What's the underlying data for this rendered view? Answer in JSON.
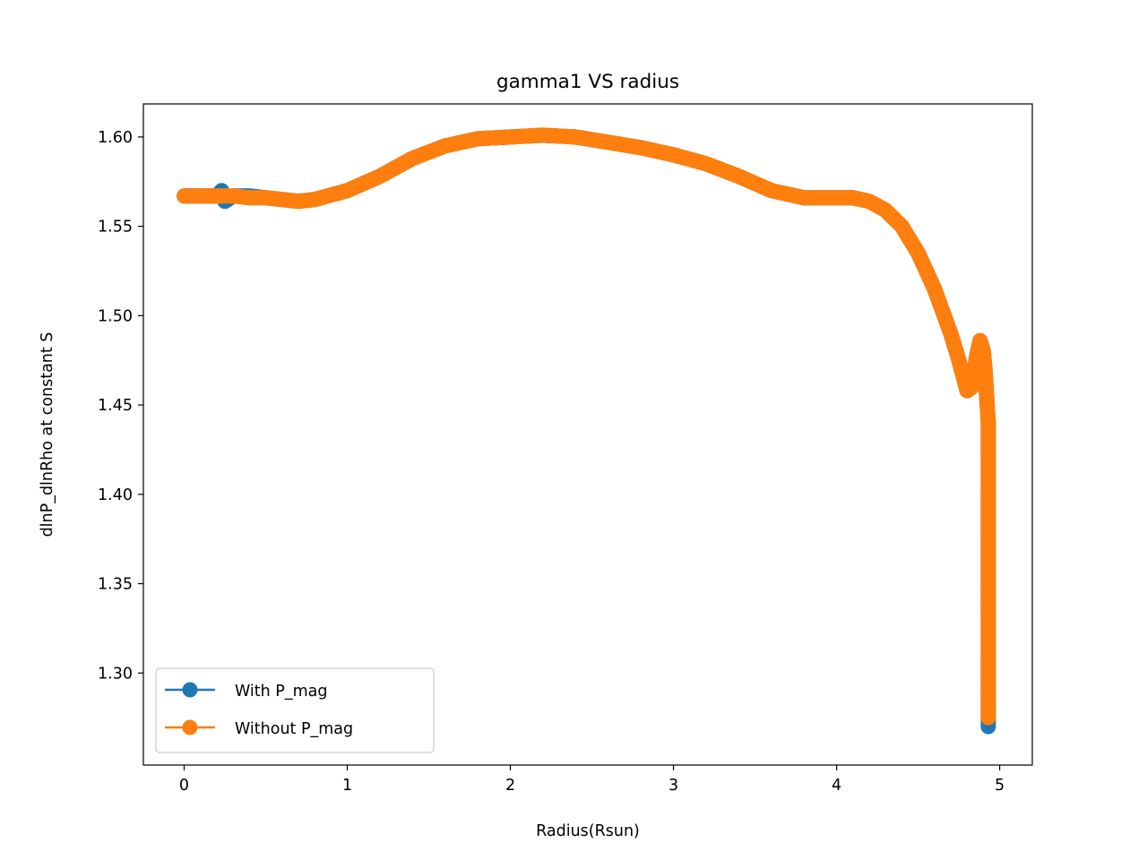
{
  "chart_data": {
    "type": "line",
    "title": "gamma1 VS radius",
    "xlabel": "Radius(Rsun)",
    "ylabel": "dlnP_dlnRho at constant S",
    "xlim": [
      -0.25,
      5.2
    ],
    "ylim": [
      1.2485,
      1.6185
    ],
    "xticks": [
      0,
      1,
      2,
      3,
      4,
      5
    ],
    "xtick_labels": [
      "0",
      "1",
      "2",
      "3",
      "4",
      "5"
    ],
    "yticks": [
      1.3,
      1.35,
      1.4,
      1.45,
      1.5,
      1.55,
      1.6
    ],
    "ytick_labels": [
      "1.30",
      "1.35",
      "1.40",
      "1.45",
      "1.50",
      "1.55",
      "1.60"
    ],
    "grid": false,
    "legend_position": "lower-left",
    "series": [
      {
        "name": "With P_mag",
        "color": "#1f77b4",
        "marker": "circle",
        "x": [
          0.0,
          0.1,
          0.2,
          0.23,
          0.25,
          0.3,
          0.4,
          0.5,
          0.6,
          0.7,
          0.8,
          1.0,
          1.2,
          1.4,
          1.6,
          1.8,
          2.0,
          2.2,
          2.4,
          2.6,
          2.8,
          3.0,
          3.2,
          3.4,
          3.6,
          3.8,
          4.0,
          4.1,
          4.2,
          4.3,
          4.4,
          4.5,
          4.6,
          4.7,
          4.75,
          4.8,
          4.83,
          4.86,
          4.88,
          4.9,
          4.91,
          4.92,
          4.93,
          4.93,
          4.93,
          4.93,
          4.93,
          4.93,
          4.93,
          4.93,
          4.93,
          4.93
        ],
        "y": [
          1.567,
          1.567,
          1.567,
          1.57,
          1.564,
          1.567,
          1.567,
          1.566,
          1.565,
          1.564,
          1.565,
          1.57,
          1.578,
          1.588,
          1.595,
          1.599,
          1.6,
          1.601,
          1.6,
          1.597,
          1.594,
          1.59,
          1.585,
          1.578,
          1.57,
          1.566,
          1.566,
          1.566,
          1.564,
          1.559,
          1.55,
          1.535,
          1.515,
          1.49,
          1.475,
          1.458,
          1.46,
          1.478,
          1.486,
          1.48,
          1.47,
          1.455,
          1.44,
          1.42,
          1.4,
          1.38,
          1.36,
          1.34,
          1.32,
          1.3,
          1.285,
          1.27
        ]
      },
      {
        "name": "Without P_mag",
        "color": "#ff7f0e",
        "marker": "circle",
        "x": [
          0.0,
          0.1,
          0.2,
          0.3,
          0.4,
          0.5,
          0.6,
          0.7,
          0.8,
          1.0,
          1.2,
          1.4,
          1.6,
          1.8,
          2.0,
          2.2,
          2.4,
          2.6,
          2.8,
          3.0,
          3.2,
          3.4,
          3.6,
          3.8,
          4.0,
          4.1,
          4.2,
          4.3,
          4.4,
          4.5,
          4.6,
          4.7,
          4.75,
          4.8,
          4.83,
          4.86,
          4.88,
          4.9,
          4.91,
          4.92,
          4.93,
          4.93,
          4.93,
          4.93,
          4.93,
          4.93,
          4.93,
          4.93,
          4.93,
          4.93
        ],
        "y": [
          1.567,
          1.567,
          1.567,
          1.567,
          1.566,
          1.566,
          1.565,
          1.564,
          1.565,
          1.57,
          1.578,
          1.588,
          1.595,
          1.599,
          1.6,
          1.601,
          1.6,
          1.597,
          1.594,
          1.59,
          1.585,
          1.578,
          1.57,
          1.566,
          1.566,
          1.566,
          1.564,
          1.559,
          1.55,
          1.535,
          1.515,
          1.49,
          1.475,
          1.458,
          1.46,
          1.478,
          1.486,
          1.48,
          1.47,
          1.455,
          1.44,
          1.42,
          1.4,
          1.38,
          1.36,
          1.34,
          1.32,
          1.3,
          1.285,
          1.275
        ]
      }
    ]
  }
}
